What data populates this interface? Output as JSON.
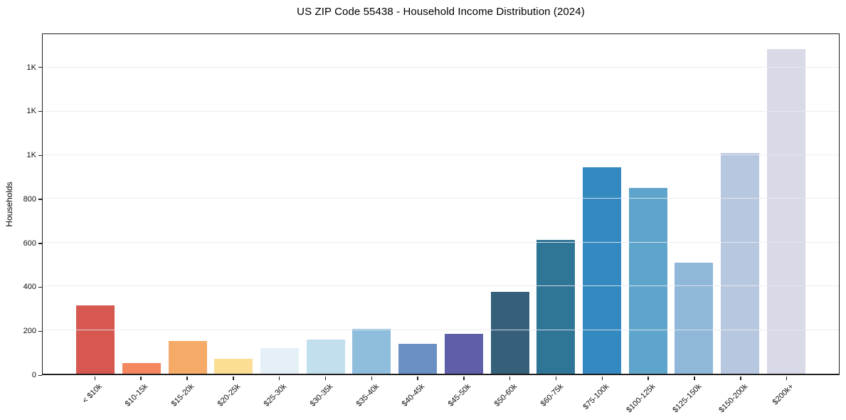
{
  "chart_data": {
    "type": "bar",
    "title": "US ZIP Code 55438 - Household Income Distribution (2024)",
    "xlabel": "",
    "ylabel": "Households",
    "categories": [
      "< $10k",
      "$10-15k",
      "$15-20k",
      "$20-25k",
      "$25-30k",
      "$30-35k",
      "$35-40k",
      "$40-45k",
      "$45-50k",
      "$50-60k",
      "$60-75k",
      "$75-100k",
      "$100-125k",
      "$125-150k",
      "$150-200k",
      "$200k+"
    ],
    "values": [
      313,
      48,
      151,
      67,
      117,
      155,
      206,
      138,
      184,
      375,
      611,
      945,
      851,
      509,
      1011,
      1486
    ],
    "bar_colors": [
      "#d65851",
      "#f5875f",
      "#f6aa68",
      "#fbdd94",
      "#e4f0f6",
      "#c2dfee",
      "#8fbedd",
      "#6b90c3",
      "#5e5fa8",
      "#36607a",
      "#2f7596",
      "#3389c0",
      "#5fa5cb",
      "#8fb7d9",
      "#b8c7e0",
      "#d8dae7"
    ],
    "ylim": [
      0,
      1554
    ],
    "yticks": [
      {
        "value": 0,
        "label": "0"
      },
      {
        "value": 200,
        "label": "200"
      },
      {
        "value": 400,
        "label": "400"
      },
      {
        "value": 600,
        "label": "600"
      },
      {
        "value": 800,
        "label": "800"
      },
      {
        "value": 1000,
        "label": "1K"
      },
      {
        "value": 1200,
        "label": "1K"
      },
      {
        "value": 1400,
        "label": "1K"
      }
    ],
    "grid": "horizontal",
    "legend": "none",
    "x_tick_rotation_deg": 45
  },
  "colors": {
    "background": "#ffffff",
    "frame": "#1f1f1f",
    "gridline": "#eaeaf2",
    "text": "#111111"
  }
}
